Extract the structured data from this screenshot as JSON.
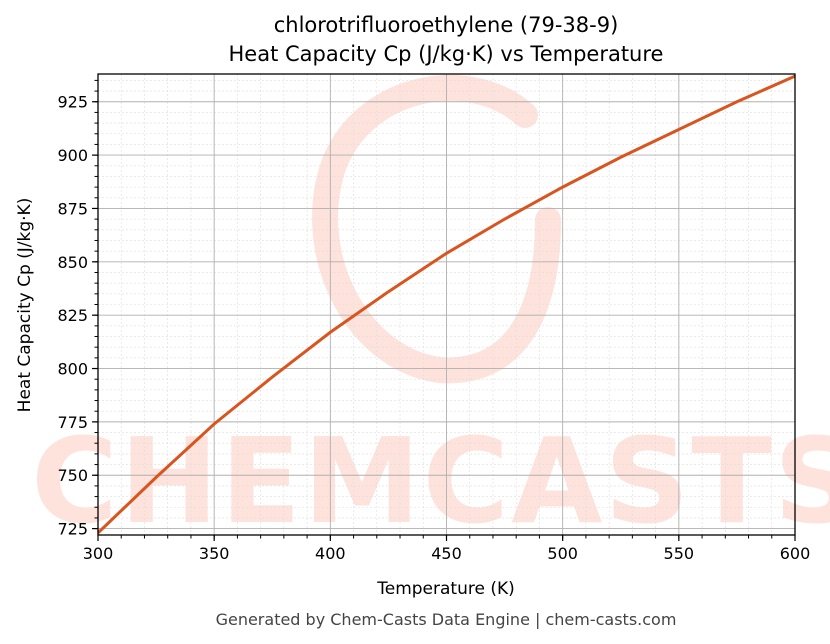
{
  "chart_data": {
    "type": "line",
    "title_line1": "chlorotrifluoroethylene (79-38-9)",
    "title_line2": "Heat Capacity Cp (J/kg·K) vs Temperature",
    "xlabel": "Temperature (K)",
    "ylabel": "Heat Capacity Cp (J/kg·K)",
    "xlim": [
      300,
      600
    ],
    "ylim": [
      722,
      938
    ],
    "xticks": [
      300,
      350,
      400,
      450,
      500,
      550,
      600
    ],
    "yticks": [
      725,
      750,
      775,
      800,
      825,
      850,
      875,
      900,
      925
    ],
    "grid": true,
    "legend": "none",
    "series": [
      {
        "color": "#d9541e",
        "x": [
          300,
          325,
          350,
          375,
          400,
          425,
          450,
          475,
          500,
          525,
          550,
          575,
          600
        ],
        "y": [
          723,
          749,
          774,
          796,
          817,
          836,
          854,
          870,
          885,
          899,
          912,
          925,
          937
        ]
      }
    ]
  },
  "watermark": {
    "text": "CHEMCASTS",
    "color": "#fde3dc"
  },
  "footer": "Generated by Chem-Casts Data Engine | chem-casts.com"
}
